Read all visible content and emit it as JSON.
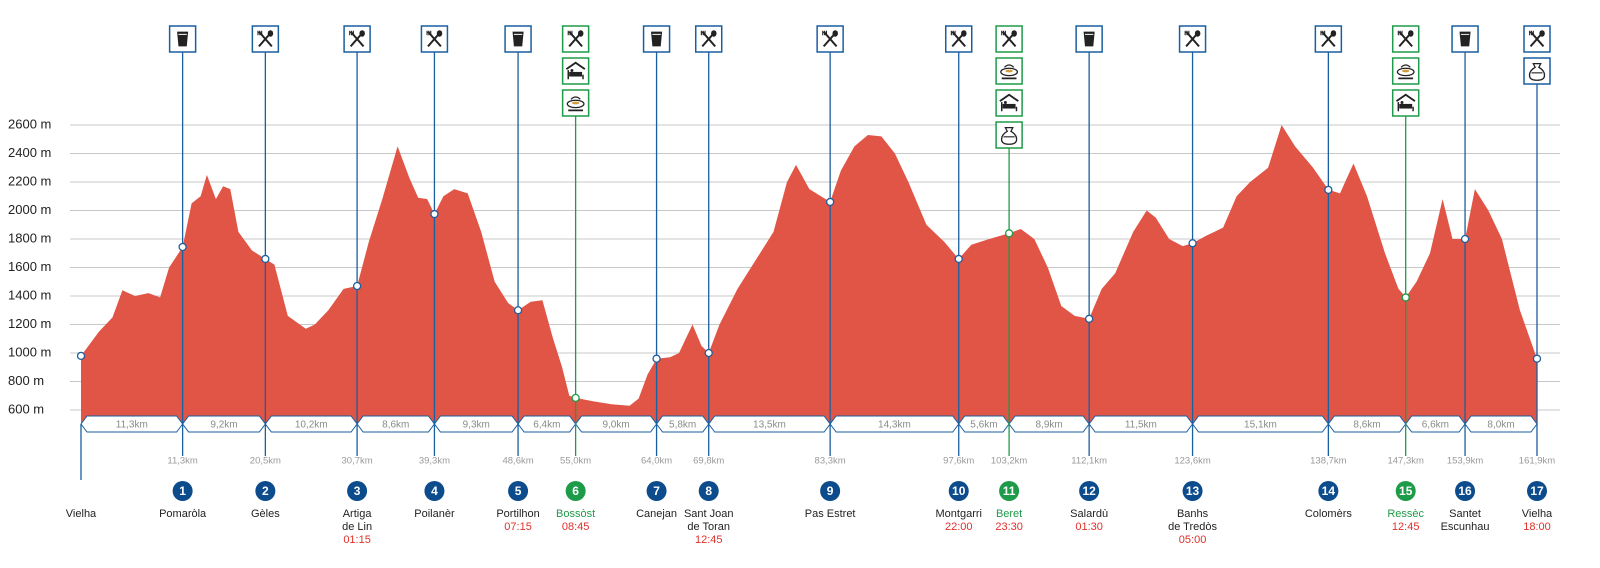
{
  "chart_data": {
    "type": "area",
    "color": "#e05545",
    "ylim": [
      500,
      2700
    ],
    "yticks": [
      {
        "value": 600,
        "label": "600 m"
      },
      {
        "value": 800,
        "label": "800 m"
      },
      {
        "value": 1000,
        "label": "1000 m"
      },
      {
        "value": 1200,
        "label": "1200 m"
      },
      {
        "value": 1400,
        "label": "1400 m"
      },
      {
        "value": 1600,
        "label": "1600 m"
      },
      {
        "value": 1800,
        "label": "1800 m"
      },
      {
        "value": 2000,
        "label": "2000 m"
      },
      {
        "value": 2200,
        "label": "2200 m"
      },
      {
        "value": 2400,
        "label": "2400 m"
      },
      {
        "value": 2600,
        "label": "2600 m"
      }
    ],
    "xlim": [
      0,
      161.9
    ],
    "grid": true,
    "x": [
      0,
      2,
      3.5,
      4.6,
      6,
      7.5,
      8.8,
      9.8,
      11.3,
      12.3,
      13.3,
      14,
      15,
      15.8,
      16.6,
      17.5,
      19,
      20.5,
      21.5,
      23,
      25,
      26,
      27.5,
      29.2,
      30.7,
      32,
      33.5,
      35.2,
      36.5,
      37.5,
      38.5,
      39.3,
      40.3,
      41.5,
      43,
      44.5,
      46,
      47.5,
      48.6,
      50,
      51.3,
      52.5,
      53.5,
      54.3,
      55,
      57,
      59,
      61,
      62,
      63,
      64,
      65.5,
      66.5,
      68,
      69,
      69.8,
      71,
      73,
      75,
      77,
      78.5,
      79.5,
      81,
      83.3,
      84.5,
      86,
      87.5,
      89,
      90.5,
      92,
      94,
      96,
      97.6,
      99,
      101,
      103.2,
      104.5,
      106,
      107.5,
      109,
      110.5,
      112.1,
      113.5,
      115,
      117,
      118.5,
      119.5,
      121,
      122.5,
      123.6,
      125,
      127,
      128.5,
      130,
      132,
      133.5,
      135,
      137,
      138.7,
      140,
      141.5,
      143,
      145,
      146.5,
      147.3,
      148.5,
      150,
      151.4,
      152.5,
      153.9,
      155,
      156.5,
      158,
      160,
      161.9
    ],
    "values": [
      980,
      1150,
      1250,
      1440,
      1400,
      1420,
      1390,
      1600,
      1744,
      2050,
      2100,
      2250,
      2080,
      2170,
      2150,
      1850,
      1720,
      1660,
      1620,
      1260,
      1170,
      1200,
      1300,
      1450,
      1470,
      1780,
      2080,
      2450,
      2230,
      2090,
      2080,
      1975,
      2100,
      2150,
      2120,
      1850,
      1500,
      1350,
      1300,
      1360,
      1370,
      1100,
      900,
      700,
      685,
      660,
      640,
      630,
      680,
      850,
      960,
      970,
      1000,
      1200,
      1050,
      1000,
      1200,
      1450,
      1650,
      1850,
      2200,
      2320,
      2150,
      2060,
      2280,
      2450,
      2530,
      2520,
      2400,
      2200,
      1900,
      1780,
      1660,
      1760,
      1800,
      1840,
      1870,
      1800,
      1600,
      1330,
      1260,
      1240,
      1450,
      1560,
      1850,
      2000,
      1950,
      1800,
      1750,
      1770,
      1820,
      1880,
      2100,
      2200,
      2300,
      2600,
      2450,
      2300,
      2145,
      2120,
      2330,
      2100,
      1700,
      1450,
      1390,
      1500,
      1700,
      2080,
      1800,
      1800,
      2150,
      2000,
      1800,
      1300,
      960
    ],
    "waypoints": [
      {
        "name": [
          "Vielha"
        ],
        "km": 0,
        "elevation": 980,
        "color": "#1a5fa0",
        "icons": []
      },
      {
        "name": [
          "Pomaròla"
        ],
        "number": 1,
        "km": 11.3,
        "km_label": "11,3km",
        "elevation": 1744,
        "color": "#1a5fa0",
        "icons": [
          "drink"
        ]
      },
      {
        "name": [
          "Gèles"
        ],
        "number": 2,
        "km": 20.5,
        "km_label": "20,5km",
        "elevation": 1660,
        "color": "#1a5fa0",
        "icons": [
          "food"
        ]
      },
      {
        "name": [
          "Artiga",
          "de Lin"
        ],
        "number": 3,
        "km": 30.7,
        "km_label": "30,7km",
        "time": "01:15",
        "elevation": 1470,
        "color": "#1a5fa0",
        "icons": [
          "food"
        ]
      },
      {
        "name": [
          "Poilanèr"
        ],
        "number": 4,
        "km": 39.3,
        "km_label": "39,3km",
        "elevation": 1975,
        "color": "#1a5fa0",
        "icons": [
          "food"
        ]
      },
      {
        "name": [
          "Portilhon"
        ],
        "number": 5,
        "km": 48.6,
        "km_label": "48,6km",
        "time": "07:15",
        "elevation": 1300,
        "color": "#1a5fa0",
        "icons": [
          "drink"
        ]
      },
      {
        "name": [
          "Bossòst"
        ],
        "number": 6,
        "km": 55.0,
        "km_label": "55,0km",
        "time": "08:45",
        "elevation": 685,
        "color": "#1e9b48",
        "icons": [
          "food",
          "bed",
          "meal"
        ]
      },
      {
        "name": [
          "Canejan"
        ],
        "number": 7,
        "km": 64.0,
        "km_label": "64,0km",
        "elevation": 960,
        "color": "#1a5fa0",
        "icons": [
          "drink"
        ]
      },
      {
        "name": [
          "Sant Joan",
          "de Toran"
        ],
        "number": 8,
        "km": 69.8,
        "km_label": "69,8km",
        "time": "12:45",
        "elevation": 1000,
        "color": "#1a5fa0",
        "icons": [
          "food"
        ]
      },
      {
        "name": [
          "Pas Estret"
        ],
        "number": 9,
        "km": 83.3,
        "km_label": "83,3km",
        "elevation": 2060,
        "color": "#1a5fa0",
        "icons": [
          "food"
        ]
      },
      {
        "name": [
          "Montgarri"
        ],
        "number": 10,
        "km": 97.6,
        "km_label": "97,6km",
        "time": "22:00",
        "elevation": 1660,
        "color": "#1a5fa0",
        "icons": [
          "food"
        ]
      },
      {
        "name": [
          "Beret"
        ],
        "number": 11,
        "km": 103.2,
        "km_label": "103,2km",
        "time": "23:30",
        "elevation": 1840,
        "color": "#1e9b48",
        "icons": [
          "food",
          "meal",
          "bed",
          "bag"
        ]
      },
      {
        "name": [
          "Salardù"
        ],
        "number": 12,
        "km": 112.1,
        "km_label": "112,1km",
        "time": "01:30",
        "elevation": 1240,
        "color": "#1a5fa0",
        "icons": [
          "drink"
        ]
      },
      {
        "name": [
          "Banhs",
          "de Tredòs"
        ],
        "number": 13,
        "km": 123.6,
        "km_label": "123,6km",
        "time": "05:00",
        "elevation": 1770,
        "color": "#1a5fa0",
        "icons": [
          "food"
        ]
      },
      {
        "name": [
          "Colomèrs"
        ],
        "number": 14,
        "km": 138.7,
        "km_label": "138,7km",
        "elevation": 2145,
        "color": "#1a5fa0",
        "icons": [
          "food"
        ]
      },
      {
        "name": [
          "Ressèc"
        ],
        "number": 15,
        "km": 147.3,
        "km_label": "147,3km",
        "time": "12:45",
        "elevation": 1390,
        "color": "#1e9b48",
        "icons": [
          "food",
          "meal",
          "bed"
        ]
      },
      {
        "name": [
          "Santet",
          "Escunhau"
        ],
        "number": 16,
        "km": 153.9,
        "km_label": "153,9km",
        "elevation": 1800,
        "color": "#1a5fa0",
        "icons": [
          "drink"
        ]
      },
      {
        "name": [
          "Vielha"
        ],
        "number": 17,
        "km": 161.9,
        "km_label": "161,9km",
        "time": "18:00",
        "elevation": 960,
        "color": "#1a5fa0",
        "icons": [
          "food",
          "bag"
        ]
      }
    ],
    "segments": [
      "11,3km",
      "9,2km",
      "10,2km",
      "8,6km",
      "9,3km",
      "6,4km",
      "9,0km",
      "5,8km",
      "13,5km",
      "14,3km",
      "5,6km",
      "8,9km",
      "11,5km",
      "15,1km",
      "8,6km",
      "6,6km",
      "8,0km"
    ]
  }
}
